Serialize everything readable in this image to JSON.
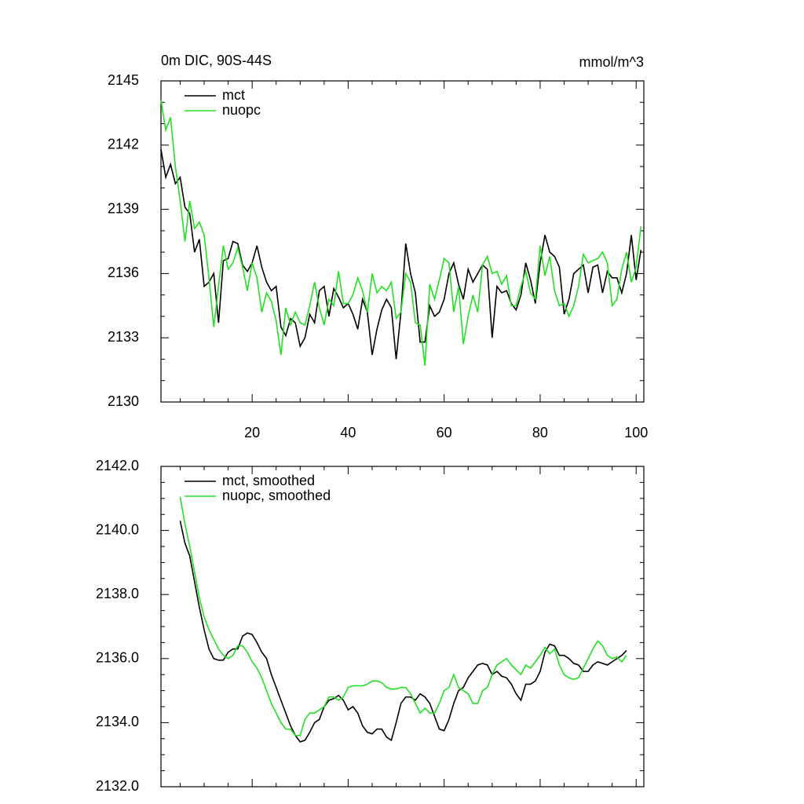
{
  "chart_data": [
    {
      "type": "line",
      "title": "0m DIC, 90S-44S",
      "units": "mmol/m^3",
      "x": [
        1,
        2,
        3,
        4,
        5,
        6,
        7,
        8,
        9,
        10,
        11,
        12,
        13,
        14,
        15,
        16,
        17,
        18,
        19,
        20,
        21,
        22,
        23,
        24,
        25,
        26,
        27,
        28,
        29,
        30,
        31,
        32,
        33,
        34,
        35,
        36,
        37,
        38,
        39,
        40,
        41,
        42,
        43,
        44,
        45,
        46,
        47,
        48,
        49,
        50,
        51,
        52,
        53,
        54,
        55,
        56,
        57,
        58,
        59,
        60,
        61,
        62,
        63,
        64,
        65,
        66,
        67,
        68,
        69,
        70,
        71,
        72,
        73,
        74,
        75,
        76,
        77,
        78,
        79,
        80,
        81,
        82,
        83,
        84,
        85,
        86,
        87,
        88,
        89,
        90,
        91,
        92,
        93,
        94,
        95,
        96,
        97,
        98,
        99,
        100,
        101
      ],
      "series": [
        {
          "name": "mct",
          "color": "#000000",
          "values": [
            2141.8,
            2140.5,
            2141.1,
            2140.2,
            2140.5,
            2139.1,
            2138.8,
            2137.0,
            2137.6,
            2135.4,
            2135.6,
            2136.0,
            2133.7,
            2136.6,
            2136.7,
            2137.5,
            2137.4,
            2136.4,
            2136.1,
            2136.5,
            2137.3,
            2136.3,
            2135.6,
            2135.2,
            2135.4,
            2133.5,
            2133.1,
            2133.9,
            2133.7,
            2132.6,
            2133.0,
            2134.1,
            2133.7,
            2135.2,
            2135.4,
            2134.0,
            2135.3,
            2134.9,
            2134.4,
            2134.6,
            2134.1,
            2133.4,
            2134.8,
            2134.2,
            2132.2,
            2133.4,
            2134.3,
            2134.8,
            2134.4,
            2132.0,
            2134.2,
            2137.4,
            2136.0,
            2135.1,
            2132.8,
            2132.8,
            2134.5,
            2134.0,
            2134.2,
            2134.8,
            2136.0,
            2136.5,
            2135.5,
            2134.8,
            2136.2,
            2135.6,
            2136.0,
            2136.4,
            2136.2,
            2133.0,
            2135.4,
            2135.1,
            2135.2,
            2134.6,
            2134.3,
            2135.0,
            2136.5,
            2135.7,
            2134.6,
            2136.5,
            2137.8,
            2137.0,
            2136.8,
            2136.3,
            2134.1,
            2134.8,
            2136.0,
            2136.2,
            2136.4,
            2135.1,
            2136.3,
            2136.4,
            2135.1,
            2136.1,
            2135.8,
            2135.8,
            2135.1,
            2136.0,
            2137.8,
            2135.7,
            2137.1
          ]
        },
        {
          "name": "nuopc",
          "color": "#22e022",
          "values": [
            2144.1,
            2142.7,
            2143.3,
            2141.0,
            2139.4,
            2137.5,
            2139.4,
            2138.1,
            2138.4,
            2137.8,
            2135.8,
            2133.5,
            2135.4,
            2137.3,
            2136.2,
            2136.5,
            2137.2,
            2136.3,
            2135.2,
            2136.5,
            2135.8,
            2134.2,
            2135.1,
            2134.7,
            2133.8,
            2132.2,
            2134.4,
            2133.6,
            2134.2,
            2133.7,
            2133.6,
            2134.5,
            2135.6,
            2134.4,
            2133.6,
            2134.8,
            2134.5,
            2136.1,
            2134.6,
            2134.6,
            2135.0,
            2135.8,
            2135.2,
            2134.2,
            2136.0,
            2135.1,
            2135.4,
            2135.2,
            2135.6,
            2133.9,
            2134.2,
            2136.0,
            2135.6,
            2133.7,
            2133.6,
            2131.7,
            2135.5,
            2134.8,
            2135.7,
            2136.7,
            2136.5,
            2134.2,
            2135.4,
            2132.7,
            2134.0,
            2135.0,
            2134.2,
            2136.4,
            2136.8,
            2136.0,
            2136.1,
            2135.5,
            2135.9,
            2134.5,
            2134.5,
            2135.4,
            2136.1,
            2135.1,
            2134.8,
            2137.3,
            2135.9,
            2136.8,
            2135.2,
            2134.5,
            2134.6,
            2134.0,
            2134.5,
            2135.4,
            2136.9,
            2136.5,
            2136.6,
            2136.7,
            2137.0,
            2136.5,
            2134.5,
            2134.8,
            2136.2,
            2137.0,
            2135.6,
            2136.3,
            2138.2
          ]
        }
      ],
      "xlim": [
        1,
        101.6
      ],
      "xticks": [
        20,
        40,
        60,
        80,
        100
      ],
      "ylim": [
        2130,
        2145
      ],
      "yticks": [
        2130,
        2133,
        2136,
        2139,
        2142,
        2145
      ],
      "legend": "upper left"
    },
    {
      "type": "line",
      "x": [
        5,
        6,
        7,
        8,
        9,
        10,
        11,
        12,
        13,
        14,
        15,
        16,
        17,
        18,
        19,
        20,
        21,
        22,
        23,
        24,
        25,
        26,
        27,
        28,
        29,
        30,
        31,
        32,
        33,
        34,
        35,
        36,
        37,
        38,
        39,
        40,
        41,
        42,
        43,
        44,
        45,
        46,
        47,
        48,
        49,
        50,
        51,
        52,
        53,
        54,
        55,
        56,
        57,
        58,
        59,
        60,
        61,
        62,
        63,
        64,
        65,
        66,
        67,
        68,
        69,
        70,
        71,
        72,
        73,
        74,
        75,
        76,
        77,
        78,
        79,
        80,
        81,
        82,
        83,
        84,
        85,
        86,
        87,
        88,
        89,
        90,
        91,
        92,
        93,
        94,
        95,
        96,
        97,
        98
      ],
      "series": [
        {
          "name": "mct, smoothed",
          "color": "#000000",
          "values": [
            2140.3,
            2139.6,
            2139.2,
            2138.4,
            2137.6,
            2136.9,
            2136.3,
            2136.0,
            2135.95,
            2135.95,
            2136.2,
            2136.3,
            2136.3,
            2136.7,
            2136.8,
            2136.75,
            2136.5,
            2136.2,
            2136.0,
            2135.5,
            2135.1,
            2134.7,
            2134.3,
            2133.9,
            2133.6,
            2133.4,
            2133.45,
            2133.7,
            2134.0,
            2134.1,
            2134.5,
            2134.7,
            2134.75,
            2134.85,
            2134.7,
            2134.4,
            2134.5,
            2134.3,
            2133.9,
            2133.7,
            2133.65,
            2133.8,
            2133.8,
            2133.55,
            2133.45,
            2134.0,
            2134.6,
            2134.8,
            2134.8,
            2134.7,
            2134.9,
            2134.8,
            2134.6,
            2134.2,
            2133.8,
            2133.75,
            2134.1,
            2134.6,
            2135.0,
            2135.1,
            2135.4,
            2135.6,
            2135.8,
            2135.85,
            2135.8,
            2135.5,
            2135.6,
            2135.45,
            2135.4,
            2135.2,
            2134.9,
            2134.7,
            2135.2,
            2135.2,
            2135.3,
            2135.6,
            2136.2,
            2136.45,
            2136.4,
            2136.1,
            2136.1,
            2136.0,
            2135.85,
            2135.8,
            2135.6,
            2135.6,
            2135.8,
            2135.9,
            2135.85,
            2135.8,
            2135.9,
            2136.0,
            2136.1,
            2136.25
          ]
        },
        {
          "name": "nuopc, smoothed",
          "color": "#22e022",
          "values": [
            2141.05,
            2140.2,
            2139.5,
            2138.7,
            2137.9,
            2137.3,
            2136.9,
            2136.6,
            2136.3,
            2136.1,
            2136.0,
            2136.1,
            2136.4,
            2136.4,
            2136.2,
            2135.9,
            2135.7,
            2135.4,
            2135.0,
            2134.6,
            2134.3,
            2134.0,
            2133.8,
            2133.8,
            2133.6,
            2133.6,
            2134.1,
            2134.3,
            2134.3,
            2134.4,
            2134.5,
            2134.8,
            2134.8,
            2134.7,
            2134.8,
            2135.1,
            2135.15,
            2135.15,
            2135.15,
            2135.2,
            2135.3,
            2135.3,
            2135.25,
            2135.1,
            2135.05,
            2135.05,
            2135.1,
            2135.1,
            2134.9,
            2134.6,
            2134.3,
            2134.45,
            2134.3,
            2134.3,
            2134.6,
            2135.0,
            2135.1,
            2135.5,
            2135.1,
            2135.0,
            2134.9,
            2134.6,
            2134.6,
            2135.0,
            2135.1,
            2135.5,
            2135.8,
            2135.9,
            2136.0,
            2135.8,
            2135.65,
            2135.5,
            2135.8,
            2135.7,
            2135.9,
            2136.1,
            2136.35,
            2136.15,
            2136.3,
            2135.8,
            2135.5,
            2135.4,
            2135.35,
            2135.4,
            2135.7,
            2136.0,
            2136.3,
            2136.55,
            2136.4,
            2136.1,
            2136.0,
            2136.05,
            2135.9,
            2136.1
          ]
        }
      ],
      "xlim": [
        1,
        101.6
      ],
      "xticks": [
        20,
        40,
        60,
        80,
        100
      ],
      "ylim": [
        2132,
        2142
      ],
      "yticks": [
        {
          "value": 2132,
          "label": "2132.0"
        },
        {
          "value": 2134,
          "label": "2134.0"
        },
        {
          "value": 2136,
          "label": "2136.0"
        },
        {
          "value": 2138,
          "label": "2138.0"
        },
        {
          "value": 2140,
          "label": "2140.0"
        },
        {
          "value": 2142,
          "label": "2142.0"
        }
      ],
      "legend": "upper left"
    }
  ]
}
